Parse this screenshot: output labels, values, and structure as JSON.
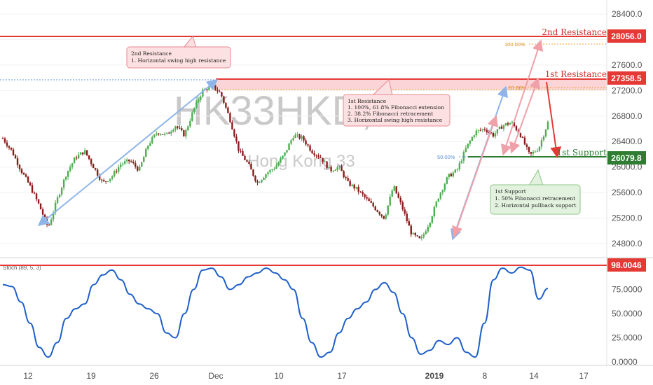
{
  "chart_data": [
    {
      "type": "candlestick",
      "watermark": {
        "symbol": "HK33HKD, 60",
        "name": "Hong Kong 33"
      },
      "y_ticks": [
        "28400.0",
        "28000.0",
        "27600.0",
        "27200.0",
        "26800.0",
        "26400.0",
        "26000.0",
        "25600.0",
        "25200.0",
        "24800.0"
      ],
      "ylim": [
        24580,
        28620
      ],
      "x_ticks": [
        {
          "label": "12",
          "bold": false
        },
        {
          "label": "19",
          "bold": false
        },
        {
          "label": "26",
          "bold": false
        },
        {
          "label": "Dec",
          "bold": false
        },
        {
          "label": "10",
          "bold": false
        },
        {
          "label": "17",
          "bold": false
        },
        {
          "label": "2019",
          "bold": true
        },
        {
          "label": "8",
          "bold": false
        },
        {
          "label": "14",
          "bold": false
        },
        {
          "label": "17",
          "bold": false
        }
      ],
      "price_path": [
        [
          0,
          26450
        ],
        [
          2,
          26250
        ],
        [
          4,
          25950
        ],
        [
          6,
          25700
        ],
        [
          8,
          25400
        ],
        [
          10,
          25050
        ],
        [
          12,
          25500
        ],
        [
          14,
          25900
        ],
        [
          16,
          26150
        ],
        [
          18,
          26250
        ],
        [
          20,
          26000
        ],
        [
          22,
          25750
        ],
        [
          24,
          25850
        ],
        [
          26,
          26050
        ],
        [
          28,
          26100
        ],
        [
          30,
          25950
        ],
        [
          32,
          26350
        ],
        [
          34,
          26550
        ],
        [
          36,
          26500
        ],
        [
          38,
          26650
        ],
        [
          40,
          26500
        ],
        [
          42,
          26900
        ],
        [
          44,
          27200
        ],
        [
          46,
          27280
        ],
        [
          48,
          27150
        ],
        [
          50,
          26750
        ],
        [
          52,
          26250
        ],
        [
          54,
          26050
        ],
        [
          56,
          25750
        ],
        [
          58,
          25900
        ],
        [
          60,
          26000
        ],
        [
          62,
          26200
        ],
        [
          64,
          26500
        ],
        [
          66,
          26450
        ],
        [
          68,
          26250
        ],
        [
          70,
          26150
        ],
        [
          72,
          25950
        ],
        [
          74,
          26000
        ],
        [
          76,
          25750
        ],
        [
          78,
          25650
        ],
        [
          80,
          25500
        ],
        [
          82,
          25350
        ],
        [
          84,
          25200
        ],
        [
          86,
          25700
        ],
        [
          88,
          25350
        ],
        [
          90,
          24950
        ],
        [
          92,
          24850
        ],
        [
          94,
          25150
        ],
        [
          96,
          25550
        ],
        [
          98,
          25850
        ],
        [
          100,
          25950
        ],
        [
          102,
          26300
        ],
        [
          104,
          26550
        ],
        [
          106,
          26600
        ],
        [
          108,
          26500
        ],
        [
          110,
          26650
        ],
        [
          112,
          26700
        ],
        [
          114,
          26500
        ],
        [
          116,
          26180
        ],
        [
          118,
          26300
        ],
        [
          120,
          26700
        ]
      ],
      "resistance_2": {
        "value": 28056.0,
        "label": "28056.0",
        "title": "2nd Resistance"
      },
      "resistance_1": {
        "value": 27358.5,
        "label": "27358.5",
        "title": "1st Resistance"
      },
      "support_1": {
        "value": 26079.8,
        "label": "26079.8",
        "title": "1st Support"
      },
      "fib_labels": {
        "f100": "100.00%",
        "f618": "61.80%",
        "f50": "50.00%"
      },
      "notes": {
        "res2": [
          "2nd Resistance",
          "1. Horizontal swing high resistance"
        ],
        "res1": [
          "1st Resistance",
          "1. 100%, 61.8% Fibonacci extension",
          "2. 38.2% Fibonacci retracement",
          "3. Horizontal swing high resistance"
        ],
        "sup1": [
          "1st Support",
          "1. 50% Fibonacci retracement",
          "2. Horizontal pullback support"
        ]
      }
    },
    {
      "type": "line",
      "title": "Stoch (89, 5, 3)",
      "y_ticks": [
        "75.0000",
        "50.0000",
        "25.0000",
        "0.0000"
      ],
      "ylim": [
        0,
        100
      ],
      "level": {
        "value": 98.0046,
        "label": "98.0046"
      },
      "series": [
        {
          "values": [
            [
              0,
              80
            ],
            [
              2,
              78
            ],
            [
              4,
              62
            ],
            [
              6,
              40
            ],
            [
              8,
              15
            ],
            [
              10,
              5
            ],
            [
              12,
              20
            ],
            [
              14,
              45
            ],
            [
              16,
              55
            ],
            [
              18,
              60
            ],
            [
              20,
              80
            ],
            [
              22,
              90
            ],
            [
              24,
              95
            ],
            [
              26,
              85
            ],
            [
              28,
              70
            ],
            [
              30,
              60
            ],
            [
              32,
              55
            ],
            [
              34,
              50
            ],
            [
              36,
              30
            ],
            [
              38,
              25
            ],
            [
              40,
              50
            ],
            [
              42,
              75
            ],
            [
              44,
              95
            ],
            [
              46,
              97
            ],
            [
              48,
              88
            ],
            [
              50,
              75
            ],
            [
              52,
              80
            ],
            [
              54,
              88
            ],
            [
              56,
              92
            ],
            [
              58,
              97
            ],
            [
              60,
              92
            ],
            [
              62,
              85
            ],
            [
              64,
              75
            ],
            [
              66,
              45
            ],
            [
              68,
              20
            ],
            [
              70,
              5
            ],
            [
              72,
              10
            ],
            [
              74,
              30
            ],
            [
              76,
              45
            ],
            [
              78,
              55
            ],
            [
              80,
              62
            ],
            [
              82,
              75
            ],
            [
              84,
              82
            ],
            [
              86,
              72
            ],
            [
              88,
              50
            ],
            [
              90,
              25
            ],
            [
              92,
              8
            ],
            [
              94,
              12
            ],
            [
              96,
              22
            ],
            [
              98,
              18
            ],
            [
              100,
              25
            ],
            [
              102,
              10
            ],
            [
              104,
              5
            ],
            [
              106,
              40
            ],
            [
              108,
              85
            ],
            [
              110,
              97
            ],
            [
              112,
              92
            ],
            [
              114,
              98
            ],
            [
              116,
              95
            ],
            [
              118,
              65
            ],
            [
              120,
              76
            ]
          ]
        }
      ]
    }
  ]
}
